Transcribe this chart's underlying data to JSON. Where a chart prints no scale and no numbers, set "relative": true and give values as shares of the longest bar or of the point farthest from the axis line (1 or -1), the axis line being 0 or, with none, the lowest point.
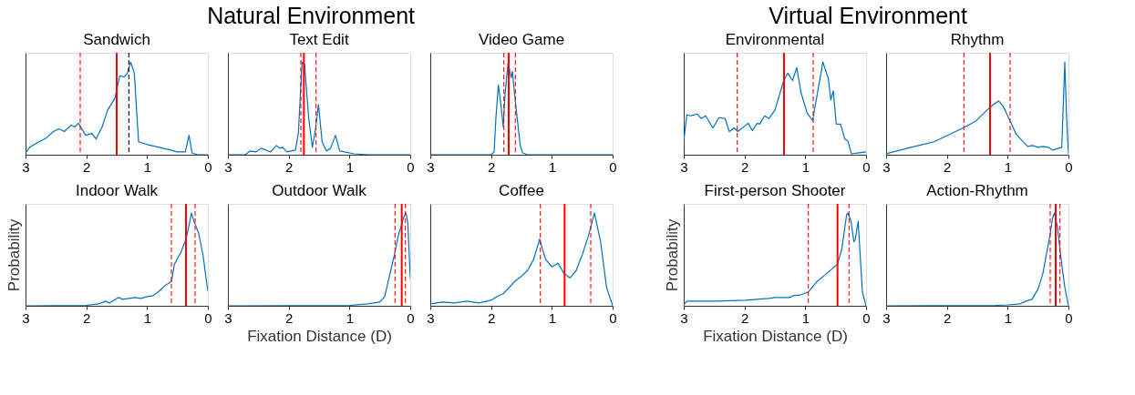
{
  "chart_data": [
    {
      "type": "line",
      "title": "Sandwich",
      "annotations": [
        "Natural Environment"
      ],
      "relative": true,
      "xlim": [
        3,
        0
      ],
      "xticks": [
        3,
        2,
        1,
        0
      ],
      "tick_labels": "x",
      "series": [
        {
          "color": "#0072bd",
          "x": [
            3.0,
            2.93,
            2.78,
            2.66,
            2.54,
            2.45,
            2.36,
            2.25,
            2.19,
            2.13,
            2.01,
            1.91,
            1.84,
            1.74,
            1.65,
            1.53,
            1.45,
            1.38,
            1.33,
            1.27,
            1.21,
            1.14,
            1.0,
            0.93,
            0.8,
            0.61,
            0.51,
            0.37,
            0.31,
            0.26,
            0.17,
            0
          ],
          "values": [
            0.02,
            0.08,
            0.14,
            0.18,
            0.25,
            0.28,
            0.25,
            0.32,
            0.3,
            0.34,
            0.21,
            0.23,
            0.17,
            0.3,
            0.48,
            0.61,
            0.85,
            0.84,
            0.87,
            1.0,
            0.88,
            0.14,
            0.11,
            0.1,
            0.08,
            0.05,
            0.03,
            0.03,
            0.21,
            0.02,
            0,
            0
          ]
        }
      ],
      "ref_lines": [
        {
          "axis": "x",
          "value": 2.1,
          "color": "#ff0000",
          "line_style": "dashed"
        },
        {
          "axis": "x",
          "value": 1.5,
          "color": "#ff0000",
          "line_style": "solid"
        },
        {
          "axis": "x",
          "value": 1.3,
          "color": "#000000",
          "line_style": "dashed"
        }
      ]
    },
    {
      "type": "line",
      "title": "Text Edit",
      "relative": true,
      "xlim": [
        3,
        0
      ],
      "xticks": [
        3,
        2,
        1,
        0
      ],
      "tick_labels": "x",
      "series": [
        {
          "color": "#0072bd",
          "x": [
            3.0,
            2.71,
            2.64,
            2.54,
            2.45,
            2.3,
            2.2,
            2.15,
            2.1,
            2.03,
            1.89,
            1.84,
            1.78,
            1.74,
            1.67,
            1.61,
            1.56,
            1.51,
            1.45,
            1.38,
            1.31,
            1.23,
            1.16,
            0.92,
            0.68,
            0
          ],
          "values": [
            0,
            0,
            0.04,
            0.03,
            0.07,
            0.03,
            0.1,
            0.07,
            0.08,
            0.03,
            0.05,
            0.24,
            1.0,
            0.98,
            0.39,
            0.08,
            0.27,
            0.54,
            0.14,
            0.04,
            0.07,
            0.21,
            0.04,
            0.01,
            0,
            0
          ]
        }
      ],
      "ref_lines": [
        {
          "axis": "x",
          "value": 1.8,
          "color": "#ff0000",
          "line_style": "dashed"
        },
        {
          "axis": "x",
          "value": 1.75,
          "color": "#ff0000",
          "line_style": "solid"
        },
        {
          "axis": "x",
          "value": 1.55,
          "color": "#ff0000",
          "line_style": "dashed"
        }
      ]
    },
    {
      "type": "line",
      "title": "Video Game",
      "relative": true,
      "xlim": [
        3,
        0
      ],
      "xticks": [
        3,
        2,
        1,
        0
      ],
      "tick_labels": "x",
      "series": [
        {
          "color": "#0072bd",
          "x": [
            3.0,
            2.0,
            1.95,
            1.92,
            1.88,
            1.84,
            1.8,
            1.77,
            1.72,
            1.67,
            1.65,
            1.62,
            1.58,
            1.52,
            1.48,
            1.4,
            0
          ],
          "values": [
            0,
            0,
            0.03,
            0.4,
            0.75,
            0.55,
            0.3,
            0.65,
            1.0,
            0.83,
            0.9,
            0.7,
            0.45,
            0.1,
            0.02,
            0,
            0
          ]
        }
      ],
      "ref_lines": [
        {
          "axis": "x",
          "value": 1.79,
          "color": "#ff0000",
          "line_style": "dashed"
        },
        {
          "axis": "x",
          "value": 1.71,
          "color": "#ff0000",
          "line_style": "solid"
        },
        {
          "axis": "x",
          "value": 1.6,
          "color": "#ff0000",
          "line_style": "dashed"
        }
      ]
    },
    {
      "type": "line",
      "title": "Indoor Walk",
      "ylabel": "Probability",
      "relative": true,
      "xlim": [
        3,
        0
      ],
      "xticks": [
        3,
        2,
        1,
        0
      ],
      "tick_labels": "x",
      "series": [
        {
          "color": "#0072bd",
          "x": [
            3.0,
            2.0,
            1.8,
            1.68,
            1.62,
            1.47,
            1.4,
            1.2,
            1.1,
            1.0,
            0.9,
            0.8,
            0.7,
            0.6,
            0.55,
            0.45,
            0.36,
            0.3,
            0.27,
            0.22,
            0.15,
            0.08,
            0.02,
            0
          ],
          "values": [
            0,
            0.005,
            0.02,
            0.05,
            0.03,
            0.09,
            0.07,
            0.09,
            0.08,
            0.1,
            0.11,
            0.16,
            0.22,
            0.26,
            0.45,
            0.57,
            0.72,
            0.9,
            1.0,
            0.9,
            0.78,
            0.55,
            0.25,
            0.16
          ]
        }
      ],
      "ref_lines": [
        {
          "axis": "x",
          "value": 0.6,
          "color": "#ff0000",
          "line_style": "dashed"
        },
        {
          "axis": "x",
          "value": 0.36,
          "color": "#ff0000",
          "line_style": "solid"
        },
        {
          "axis": "x",
          "value": 0.21,
          "color": "#ff0000",
          "line_style": "dashed"
        }
      ]
    },
    {
      "type": "line",
      "title": "Outdoor Walk",
      "xlabel": "Fixation Distance (D)",
      "relative": true,
      "xlim": [
        3,
        0
      ],
      "xticks": [
        3,
        2,
        1,
        0
      ],
      "tick_labels": "x",
      "series": [
        {
          "color": "#0072bd",
          "x": [
            3.0,
            1.0,
            0.7,
            0.5,
            0.42,
            0.35,
            0.26,
            0.2,
            0.14,
            0.1,
            0.07,
            0.04,
            0.02,
            0
          ],
          "values": [
            0,
            0.005,
            0.02,
            0.04,
            0.1,
            0.3,
            0.55,
            0.75,
            0.88,
            0.97,
            1.0,
            0.9,
            0.6,
            0.3
          ]
        }
      ],
      "ref_lines": [
        {
          "axis": "x",
          "value": 0.25,
          "color": "#ff0000",
          "line_style": "dashed"
        },
        {
          "axis": "x",
          "value": 0.14,
          "color": "#ff0000",
          "line_style": "solid"
        },
        {
          "axis": "x",
          "value": 0.08,
          "color": "#ff0000",
          "line_style": "dashed"
        }
      ]
    },
    {
      "type": "line",
      "title": "Coffee",
      "relative": true,
      "xlim": [
        3,
        0
      ],
      "xticks": [
        3,
        2,
        1,
        0
      ],
      "tick_labels": "x",
      "series": [
        {
          "color": "#0072bd",
          "x": [
            3.0,
            2.8,
            2.6,
            2.4,
            2.2,
            2.0,
            1.9,
            1.8,
            1.7,
            1.6,
            1.5,
            1.4,
            1.3,
            1.2,
            1.15,
            1.1,
            1.0,
            0.9,
            0.8,
            0.7,
            0.6,
            0.5,
            0.4,
            0.3,
            0.2,
            0.1,
            0
          ],
          "values": [
            0.02,
            0.04,
            0.03,
            0.05,
            0.03,
            0.06,
            0.1,
            0.13,
            0.2,
            0.27,
            0.32,
            0.38,
            0.5,
            0.72,
            0.6,
            0.5,
            0.42,
            0.46,
            0.35,
            0.3,
            0.38,
            0.55,
            0.75,
            1.0,
            0.7,
            0.2,
            0
          ]
        }
      ],
      "ref_lines": [
        {
          "axis": "x",
          "value": 1.19,
          "color": "#ff0000",
          "line_style": "dashed"
        },
        {
          "axis": "x",
          "value": 0.79,
          "color": "#ff0000",
          "line_style": "solid"
        },
        {
          "axis": "x",
          "value": 0.36,
          "color": "#ff0000",
          "line_style": "dashed"
        }
      ]
    },
    {
      "type": "line",
      "title": "Environmental",
      "annotations": [
        "Virtual  Environment"
      ],
      "relative": true,
      "xlim": [
        3,
        0
      ],
      "xticks": [
        3,
        2,
        1,
        0
      ],
      "tick_labels": "x",
      "series": [
        {
          "color": "#0072bd",
          "x": [
            3.0,
            2.95,
            2.88,
            2.78,
            2.71,
            2.64,
            2.52,
            2.42,
            2.32,
            2.25,
            2.17,
            2.11,
            1.94,
            1.87,
            1.79,
            1.75,
            1.67,
            1.6,
            1.5,
            1.36,
            1.29,
            1.21,
            1.14,
            1.07,
            0.97,
            0.88,
            0.79,
            0.71,
            0.62,
            0.58,
            0.54,
            0.49,
            0.42,
            0.35,
            0.3,
            0.24,
            0.11,
            0
          ],
          "values": [
            0.14,
            0.43,
            0.42,
            0.44,
            0.39,
            0.42,
            0.29,
            0.4,
            0.39,
            0.25,
            0.29,
            0.25,
            0.34,
            0.26,
            0.34,
            0.33,
            0.42,
            0.39,
            0.48,
            0.79,
            0.88,
            0.8,
            0.94,
            0.67,
            0.45,
            0.37,
            0.7,
            1.0,
            0.82,
            0.59,
            0.69,
            0.33,
            0.33,
            0.17,
            0.15,
            0.01,
            0.02,
            0.03
          ]
        }
      ],
      "ref_lines": [
        {
          "axis": "x",
          "value": 2.12,
          "color": "#ff0000",
          "line_style": "dashed"
        },
        {
          "axis": "x",
          "value": 1.35,
          "color": "#ff0000",
          "line_style": "solid"
        },
        {
          "axis": "x",
          "value": 0.87,
          "color": "#ff0000",
          "line_style": "dashed"
        }
      ]
    },
    {
      "type": "line",
      "title": "Rhythm",
      "relative": true,
      "xlim": [
        3,
        0
      ],
      "xticks": [
        3,
        2,
        1,
        0
      ],
      "tick_labels": "x",
      "series": [
        {
          "color": "#0072bd",
          "x": [
            3.0,
            2.59,
            2.21,
            1.92,
            1.73,
            1.53,
            1.39,
            1.24,
            1.15,
            1.08,
            0.95,
            0.86,
            0.67,
            0.59,
            0.5,
            0.42,
            0.33,
            0.26,
            0.16,
            0.11,
            0.06,
            0.03,
            0
          ],
          "values": [
            0.01,
            0.08,
            0.14,
            0.23,
            0.29,
            0.36,
            0.45,
            0.54,
            0.58,
            0.53,
            0.35,
            0.22,
            0.09,
            0.1,
            0.08,
            0.09,
            0.08,
            0.05,
            0.07,
            0.08,
            1.0,
            0.39,
            0.01
          ]
        }
      ],
      "ref_lines": [
        {
          "axis": "x",
          "value": 1.72,
          "color": "#ff0000",
          "line_style": "dashed"
        },
        {
          "axis": "x",
          "value": 1.29,
          "color": "#ff0000",
          "line_style": "solid"
        },
        {
          "axis": "x",
          "value": 0.96,
          "color": "#ff0000",
          "line_style": "dashed"
        }
      ]
    },
    {
      "type": "line",
      "title": "First-person Shooter",
      "ylabel": "Probability",
      "xlabel": "Fixation Distance (D)",
      "relative": true,
      "xlim": [
        3,
        0
      ],
      "xticks": [
        3,
        2,
        1,
        0
      ],
      "tick_labels": "x",
      "series": [
        {
          "color": "#0072bd",
          "x": [
            3.0,
            2.95,
            2.47,
            1.99,
            1.6,
            1.5,
            1.26,
            1.19,
            1.07,
            0.95,
            0.81,
            0.68,
            0.47,
            0.4,
            0.32,
            0.3,
            0.25,
            0.2,
            0.18,
            0.13,
            0.1,
            0.06,
            0
          ],
          "values": [
            0.01,
            0.05,
            0.05,
            0.06,
            0.08,
            0.09,
            0.09,
            0.11,
            0.12,
            0.15,
            0.26,
            0.33,
            0.45,
            0.61,
            0.98,
            1.0,
            0.92,
            0.69,
            0.71,
            0.91,
            0.58,
            0.15,
            0
          ]
        }
      ],
      "ref_lines": [
        {
          "axis": "x",
          "value": 0.95,
          "color": "#ff0000",
          "line_style": "dashed"
        },
        {
          "axis": "x",
          "value": 0.47,
          "color": "#ff0000",
          "line_style": "solid"
        },
        {
          "axis": "x",
          "value": 0.28,
          "color": "#ff0000",
          "line_style": "dashed"
        }
      ]
    },
    {
      "type": "line",
      "title": "Action-Rhythm",
      "relative": true,
      "xlim": [
        3,
        0
      ],
      "xticks": [
        3,
        2,
        1,
        0
      ],
      "tick_labels": "x",
      "series": [
        {
          "color": "#0072bd",
          "x": [
            3.0,
            1.2,
            1.0,
            0.8,
            0.7,
            0.6,
            0.5,
            0.42,
            0.35,
            0.3,
            0.26,
            0.23,
            0.18,
            0.12,
            0.06,
            0
          ],
          "values": [
            0,
            0.005,
            0.01,
            0.02,
            0.05,
            0.07,
            0.18,
            0.35,
            0.6,
            0.78,
            0.95,
            1.0,
            0.85,
            0.5,
            0.2,
            0
          ]
        }
      ],
      "ref_lines": [
        {
          "axis": "x",
          "value": 0.3,
          "color": "#ff0000",
          "line_style": "dashed"
        },
        {
          "axis": "x",
          "value": 0.21,
          "color": "#ff0000",
          "line_style": "solid"
        },
        {
          "axis": "x",
          "value": 0.14,
          "color": "#ff0000",
          "line_style": "dashed"
        }
      ]
    }
  ]
}
